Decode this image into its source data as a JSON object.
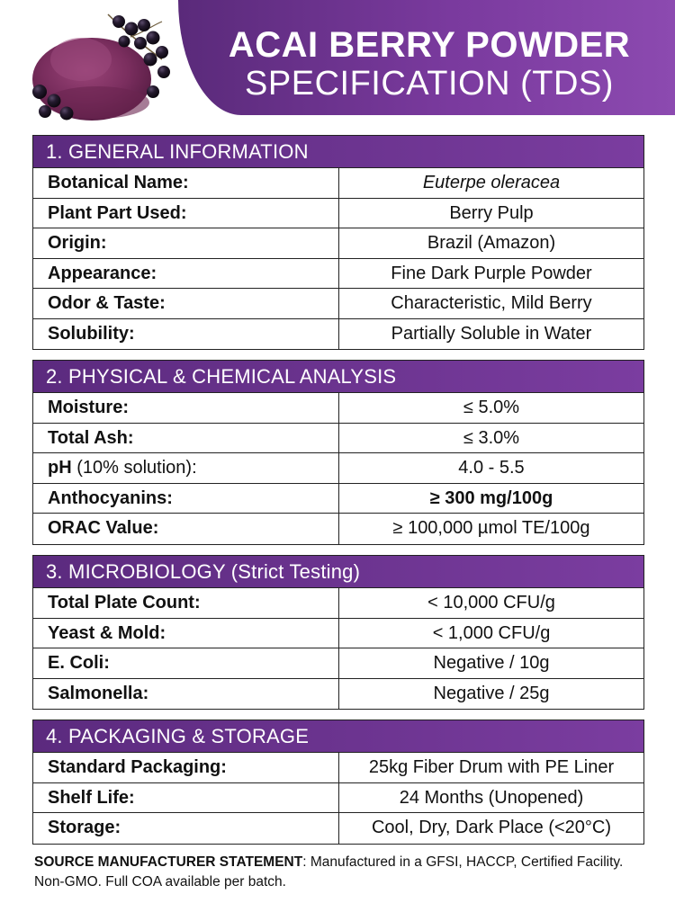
{
  "header": {
    "title_line1": "ACAI BERRY POWDER",
    "title_line2": "SPECIFICATION (TDS)"
  },
  "sections": [
    {
      "title": "1. GENERAL INFORMATION",
      "rows": [
        {
          "label": "Botanical Name:",
          "value": "Euterpe oleracea"
        },
        {
          "label": "Plant Part Used:",
          "value": "Berry Pulp"
        },
        {
          "label": "Origin:",
          "value": "Brazil (Amazon)"
        },
        {
          "label": "Appearance:",
          "value": "Fine Dark Purple Powder"
        },
        {
          "label": "Odor & Taste:",
          "value": "Characteristic, Mild Berry"
        },
        {
          "label": "Solubility:",
          "value": "Partially Soluble in Water"
        }
      ]
    },
    {
      "title": "2. PHYSICAL & CHEMICAL ANALYSIS",
      "rows": [
        {
          "label": "Moisture:",
          "value": "≤ 5.0%"
        },
        {
          "label": "Total Ash:",
          "value": "≤ 3.0%"
        },
        {
          "label": "pH",
          "label_suffix": " (10% solution):",
          "value": "4.0 - 5.5"
        },
        {
          "label": "Anthocyanins:",
          "value": "≥ 300 mg/100g"
        },
        {
          "label": "ORAC Value:",
          "value": "≥ 100,000 µmol TE/100g"
        }
      ]
    },
    {
      "title": "3. MICROBIOLOGY (Strict Testing)",
      "rows": [
        {
          "label": "Total Plate Count:",
          "value": "< 10,000 CFU/g"
        },
        {
          "label": "Yeast & Mold:",
          "value": "< 1,000 CFU/g"
        },
        {
          "label": "E. Coli:",
          "value": "Negative / 10g"
        },
        {
          "label": "Salmonella:",
          "value": "Negative / 25g"
        }
      ]
    },
    {
      "title": "4. PACKAGING & STORAGE",
      "rows": [
        {
          "label": "Standard Packaging:",
          "value": "25kg Fiber Drum with PE Liner"
        },
        {
          "label": "Shelf Life:",
          "value": "24 Months (Unopened)"
        },
        {
          "label": "Storage:",
          "value": "Cool, Dry, Dark Place (<20°C)"
        }
      ]
    }
  ],
  "footer": {
    "lead": "SOURCE MANUFACTURER STATEMENT",
    "text": ": Manufactured in a GFSI, HACCP, Certified Facility. Non-GMO. Full COA available per batch."
  },
  "colors": {
    "brand_purple": "#6b3290",
    "powder_purple": "#7a2e5e"
  },
  "icons": {
    "hero": "acai-powder-and-berries-image"
  }
}
